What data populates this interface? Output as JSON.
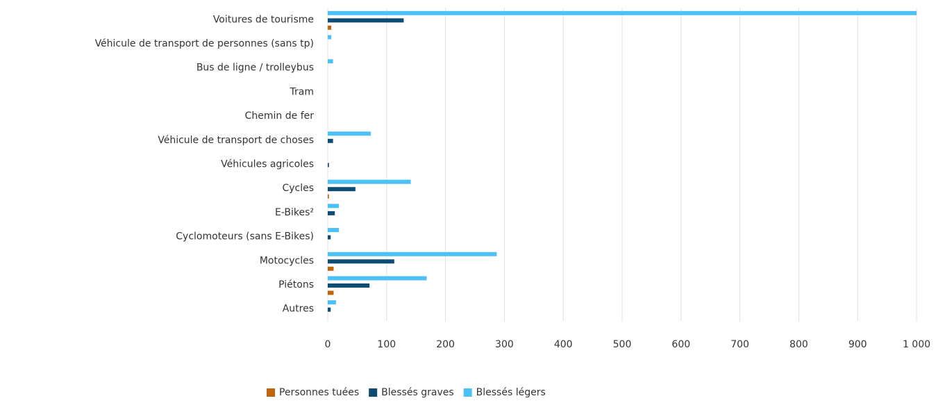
{
  "chart_data": {
    "type": "hbar",
    "categories": [
      "Voitures de tourisme",
      "Véhicule de transport de personnes (sans tp)",
      "Bus de ligne / trolleybus",
      "Tram",
      "Chemin de fer",
      "Véhicule de transport de choses",
      "Véhicules agricoles",
      "Cycles",
      "E-Bikes²",
      "Cyclomoteurs (sans E-Bikes)",
      "Motocycles",
      "Piétons",
      "Autres"
    ],
    "series": [
      {
        "name": "Personnes tuées",
        "color": "#c0650f",
        "values": [
          6,
          0,
          0,
          0,
          0,
          0,
          0,
          2,
          0,
          0,
          10,
          10,
          0
        ]
      },
      {
        "name": "Blessés graves",
        "color": "#0e4d73",
        "values": [
          129,
          0,
          0,
          0,
          0,
          9,
          2,
          47,
          12,
          5,
          113,
          71,
          5
        ]
      },
      {
        "name": "Blessés légers",
        "color": "#4dc1f6",
        "values": [
          1000,
          6,
          9,
          0,
          0,
          73,
          0,
          141,
          19,
          19,
          287,
          168,
          14
        ]
      }
    ],
    "xlim": [
      0,
      1000
    ],
    "xticks": [
      0,
      100,
      200,
      300,
      400,
      500,
      600,
      700,
      800,
      900,
      {
        "value": 1000,
        "label": "1 000"
      }
    ],
    "grid": true,
    "legend": "bottom"
  }
}
